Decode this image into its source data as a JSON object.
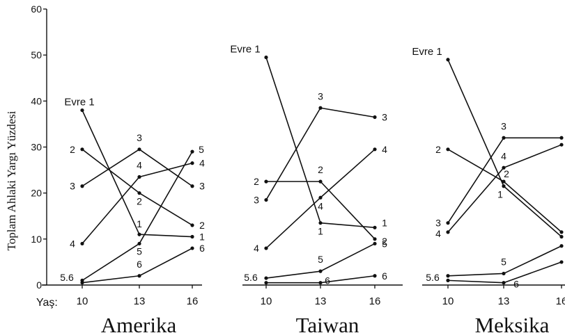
{
  "chart_data": {
    "type": "line",
    "ylabel": "Toplam Ahlaki Yargı Yüzdesi",
    "xlabel": "Yaş:",
    "x": [
      10,
      13,
      16
    ],
    "ylim": [
      0,
      60
    ],
    "yticks": [
      0,
      10,
      20,
      30,
      40,
      50,
      60
    ],
    "grid": false,
    "stage_title": "Evre 1",
    "shared_low_label": "5.6",
    "panels": [
      {
        "title": "Amerika",
        "series": [
          {
            "name": "1",
            "values": [
              38,
              11,
              10.5
            ]
          },
          {
            "name": "2",
            "values": [
              29.5,
              20,
              13
            ]
          },
          {
            "name": "3",
            "values": [
              21.5,
              29.5,
              21.5
            ]
          },
          {
            "name": "4",
            "values": [
              9,
              23.5,
              26.5
            ]
          },
          {
            "name": "5",
            "values": [
              1,
              9,
              29
            ]
          },
          {
            "name": "6",
            "values": [
              0.5,
              2,
              8
            ]
          }
        ]
      },
      {
        "title": "Taiwan",
        "series": [
          {
            "name": "1",
            "values": [
              49.5,
              13.5,
              12.5
            ]
          },
          {
            "name": "2",
            "values": [
              22.5,
              22.5,
              10
            ]
          },
          {
            "name": "3",
            "values": [
              18.5,
              38.5,
              36.5
            ]
          },
          {
            "name": "4",
            "values": [
              8,
              19,
              29.5
            ]
          },
          {
            "name": "5",
            "values": [
              1.5,
              3,
              9
            ]
          },
          {
            "name": "6",
            "values": [
              0.5,
              0.5,
              2
            ]
          }
        ]
      },
      {
        "title": "Meksika",
        "series": [
          {
            "name": "1",
            "values": [
              49,
              21.5,
              10.5
            ]
          },
          {
            "name": "2",
            "values": [
              29.5,
              22.5,
              11.5
            ]
          },
          {
            "name": "3",
            "values": [
              13.5,
              32,
              32
            ]
          },
          {
            "name": "4",
            "values": [
              11.5,
              25.5,
              30.5
            ]
          },
          {
            "name": "5",
            "values": [
              2,
              2.5,
              8.5
            ]
          },
          {
            "name": "6",
            "values": [
              1,
              0.5,
              5
            ]
          }
        ]
      }
    ]
  }
}
